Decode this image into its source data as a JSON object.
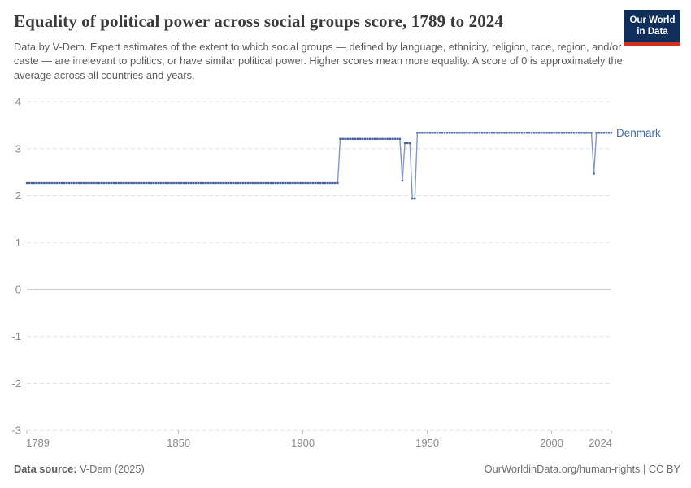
{
  "header": {
    "title": "Equality of political power across social groups score, 1789 to 2024",
    "subtitle": "Data by V-Dem. Expert estimates of the extent to which social groups — defined by language, ethnicity, religion, race, region, and/or caste — are irrelevant to politics, or have similar political power. Higher scores mean more equality. A score of 0 is approximately the average across all countries and years.",
    "logo": {
      "line1": "Our World",
      "line2": "in Data"
    }
  },
  "chart_data": {
    "type": "line",
    "title": "Equality of political power across social groups score, 1789 to 2024",
    "xlabel": "",
    "ylabel": "",
    "x_range": [
      1789,
      2024
    ],
    "y_range": [
      -3,
      4
    ],
    "x_ticks": [
      1789,
      1850,
      1900,
      1950,
      2000,
      2024
    ],
    "y_ticks": [
      4,
      3,
      2,
      1,
      0,
      -1,
      -2,
      -3
    ],
    "grid": true,
    "legend_position": "end-of-line",
    "series": [
      {
        "name": "Denmark",
        "segments": [
          {
            "from": 1789,
            "to": 1914,
            "value": 2.27
          },
          {
            "from": 1915,
            "to": 1939,
            "value": 3.21
          },
          {
            "from": 1940,
            "to": 1940,
            "value": 2.32
          },
          {
            "from": 1941,
            "to": 1943,
            "value": 3.12
          },
          {
            "from": 1944,
            "to": 1945,
            "value": 1.94
          },
          {
            "from": 1946,
            "to": 2016,
            "value": 3.34
          },
          {
            "from": 2017,
            "to": 2017,
            "value": 2.47
          },
          {
            "from": 2018,
            "to": 2024,
            "value": 3.34
          }
        ]
      }
    ]
  },
  "colors": {
    "line_stroke": "#8397C9",
    "marker": "#45629E",
    "series_label": "#4268AD",
    "grid": "#E2E2E2",
    "zero_line": "#9C9C9C",
    "axis_text": "#8A8A8A",
    "tick_mark": "#BDBDBD"
  },
  "footer": {
    "source_label": "Data source:",
    "source_value": " V-Dem (2025)",
    "rights": "OurWorldinData.org/human-rights | CC BY"
  }
}
